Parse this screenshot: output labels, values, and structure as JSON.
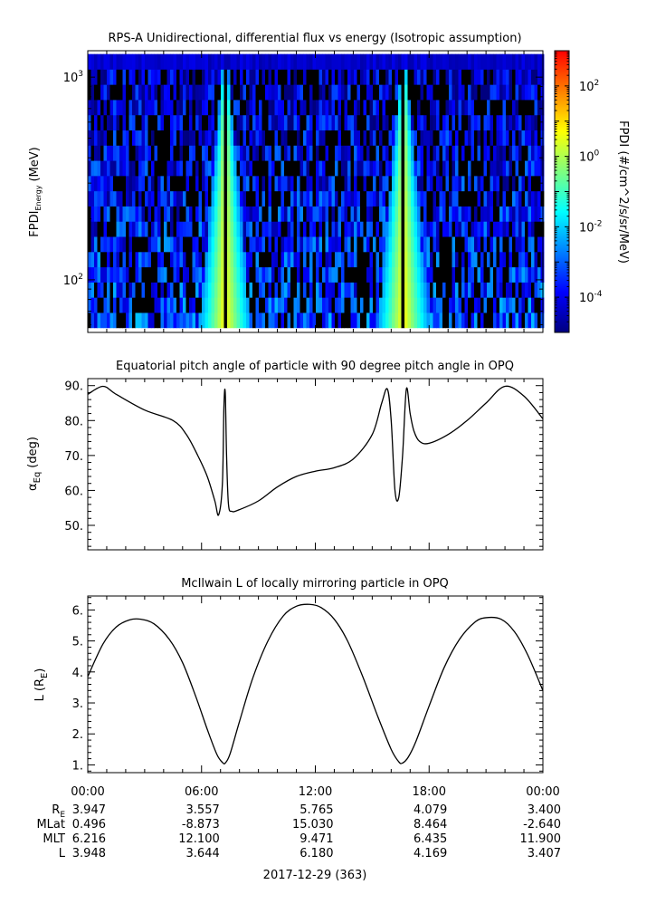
{
  "chart_data": [
    {
      "type": "heatmap",
      "title": "RPS-A Unidirectional, differential flux vs energy (Isotropic assumption)",
      "ylabel": "FPDI",
      "ylabel_sub": "Energy",
      "ylabel_unit": "(MeV)",
      "yscale": "log",
      "ylim": [
        55,
        1350
      ],
      "yticks": [
        {
          "value": 100,
          "mantissa": "10",
          "exp": "2"
        },
        {
          "value": 1000,
          "mantissa": "10",
          "exp": "3"
        }
      ],
      "energy_range_mev": [
        58,
        1300
      ],
      "colorbar": {
        "label": "FPDI (#/cm^2/s/sr/MeV)",
        "scale": "log",
        "range": [
          1e-05,
          1000.0
        ],
        "ticks": [
          {
            "value": 0.0001,
            "mantissa": "10",
            "exp": "-4"
          },
          {
            "value": 0.01,
            "mantissa": "10",
            "exp": "-2"
          },
          {
            "value": 1,
            "mantissa": "10",
            "exp": "0"
          },
          {
            "value": 100,
            "mantissa": "10",
            "exp": "2"
          }
        ],
        "colors": [
          "#00007f",
          "#0000ff",
          "#007fff",
          "#00ffff",
          "#7fff7f",
          "#ffff00",
          "#ff7f00",
          "#ff0000"
        ]
      },
      "peak_hours": [
        7.25,
        16.65
      ],
      "xlim_hours": [
        0,
        24
      ]
    },
    {
      "type": "line",
      "title": "Equatorial pitch angle of particle with 90 degree pitch angle in OPQ",
      "ylabel": "α",
      "ylabel_sub": "Eq",
      "ylabel_unit": "(deg)",
      "ylim": [
        43,
        92
      ],
      "yticks": [
        50,
        60,
        70,
        80,
        90
      ],
      "ytick_labels": [
        "50.",
        "60.",
        "70.",
        "80.",
        "90."
      ],
      "xlim_hours": [
        0,
        24
      ],
      "x": [
        0,
        0.8,
        1.5,
        3,
        4.5,
        5.2,
        5.8,
        6.3,
        6.7,
        6.9,
        7.1,
        7.18,
        7.25,
        7.32,
        7.42,
        7.6,
        8,
        9,
        10,
        11,
        12,
        13,
        14,
        15,
        15.5,
        15.8,
        16.0,
        16.2,
        16.4,
        16.6,
        16.8,
        17.0,
        17.2,
        17.5,
        18,
        19,
        20,
        21,
        22,
        23,
        24
      ],
      "y": [
        87.5,
        89.8,
        87.5,
        83,
        80,
        76,
        70,
        64,
        57,
        53,
        62,
        84,
        88,
        70,
        56,
        54,
        54.5,
        57,
        61,
        64,
        65.5,
        66.5,
        69,
        76,
        85,
        89,
        80,
        60,
        58,
        70,
        89,
        82,
        77,
        74,
        73.5,
        76,
        80,
        85,
        89.8,
        87,
        80.5
      ]
    },
    {
      "type": "line",
      "title": "McIlwain L of locally mirroring particle in OPQ",
      "ylabel": "L",
      "ylabel_unit": "(R",
      "ylabel_sub": "E",
      "ylim": [
        0.75,
        6.45
      ],
      "yticks": [
        1,
        2,
        3,
        4,
        5,
        6
      ],
      "ytick_labels": [
        "1.",
        "2.",
        "3.",
        "4.",
        "5.",
        "6."
      ],
      "xlim_hours": [
        0,
        24
      ],
      "x": [
        0,
        0.8,
        1.5,
        2.2,
        2.8,
        3.5,
        4.3,
        5,
        5.7,
        6.3,
        6.8,
        7.1,
        7.25,
        7.5,
        8,
        8.7,
        9.5,
        10.3,
        11,
        11.7,
        12.3,
        13,
        13.7,
        14.5,
        15.3,
        16,
        16.4,
        16.6,
        16.9,
        17.3,
        18,
        18.8,
        19.6,
        20.4,
        21,
        21.8,
        22.5,
        23.2,
        24
      ],
      "y": [
        3.85,
        4.9,
        5.45,
        5.68,
        5.7,
        5.55,
        5.05,
        4.3,
        3.2,
        2.15,
        1.35,
        1.08,
        1.06,
        1.35,
        2.4,
        3.8,
        5.0,
        5.8,
        6.12,
        6.18,
        6.08,
        5.7,
        5.0,
        3.85,
        2.55,
        1.5,
        1.1,
        1.06,
        1.25,
        1.75,
        2.9,
        4.15,
        5.05,
        5.6,
        5.75,
        5.7,
        5.3,
        4.55,
        3.4
      ]
    }
  ],
  "time_axis": {
    "tick_labels": [
      "00:00",
      "06:00",
      "12:00",
      "18:00",
      "00:00"
    ],
    "tick_hours": [
      0,
      6,
      12,
      18,
      24
    ]
  },
  "ephemeris": {
    "rows": [
      {
        "label": "R",
        "label_sub": "E",
        "values": [
          "3.947",
          "3.557",
          "5.765",
          "4.079",
          "3.400"
        ]
      },
      {
        "label": "MLat",
        "label_sub": "",
        "values": [
          "0.496",
          "-8.873",
          "15.030",
          "8.464",
          "-2.640"
        ]
      },
      {
        "label": "MLT",
        "label_sub": "",
        "values": [
          "6.216",
          "12.100",
          "9.471",
          "6.435",
          "11.900"
        ]
      },
      {
        "label": "L",
        "label_sub": "",
        "values": [
          "3.948",
          "3.644",
          "6.180",
          "4.169",
          "3.407"
        ]
      }
    ]
  },
  "date_label": "2017-12-29 (363)"
}
